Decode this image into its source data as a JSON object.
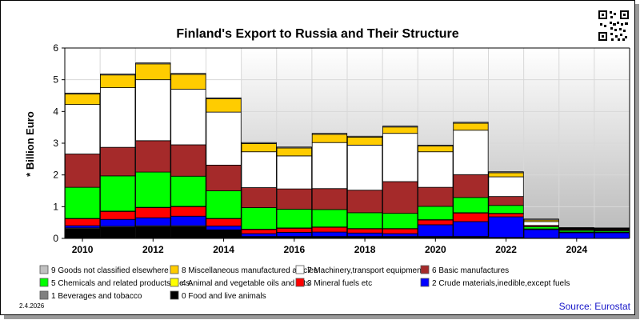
{
  "chart_data": {
    "type": "bar",
    "stacked": true,
    "title": "Finland's Export to Russia and Their Structure",
    "ylabel": "* Billion Euro",
    "xlabel": "",
    "ylim": [
      0,
      6
    ],
    "yticks": [
      "0",
      "1",
      "2",
      "3",
      "4",
      "5",
      "6"
    ],
    "xtick_labels": [
      "2010",
      "2012",
      "2014",
      "2016",
      "2018",
      "2020",
      "2022",
      "2024"
    ],
    "categories": [
      "2010",
      "2011",
      "2012",
      "2013",
      "2014",
      "2015",
      "2016",
      "2017",
      "2018",
      "2019",
      "2020",
      "2021",
      "2022",
      "2023",
      "2024",
      "2025"
    ],
    "shaded_from_year": "2015",
    "series": [
      {
        "name": "0 Food and live animals",
        "color": "#000000",
        "values": [
          0.3,
          0.35,
          0.37,
          0.37,
          0.25,
          0.05,
          0.05,
          0.05,
          0.05,
          0.05,
          0.05,
          0.05,
          0.02,
          0.01,
          0.0,
          0.0
        ]
      },
      {
        "name": "1 Beverages and tobacco",
        "color": "#808080",
        "values": [
          0.03,
          0.03,
          0.03,
          0.03,
          0.02,
          0.01,
          0.01,
          0.01,
          0.01,
          0.01,
          0.01,
          0.01,
          0.01,
          0.0,
          0.0,
          0.0
        ]
      },
      {
        "name": "2 Crude materials,inedible,except fuels",
        "color": "#0000ff",
        "values": [
          0.07,
          0.22,
          0.25,
          0.3,
          0.12,
          0.09,
          0.13,
          0.14,
          0.11,
          0.09,
          0.37,
          0.47,
          0.65,
          0.27,
          0.18,
          0.18
        ]
      },
      {
        "name": "3 Mineral fuels etc",
        "color": "#ff0000",
        "values": [
          0.22,
          0.25,
          0.32,
          0.3,
          0.23,
          0.13,
          0.13,
          0.15,
          0.13,
          0.15,
          0.15,
          0.27,
          0.1,
          0.02,
          0.02,
          0.02
        ]
      },
      {
        "name": "4 Animal and vegetable oils and fats",
        "color": "#ffff00",
        "values": [
          0.01,
          0.01,
          0.01,
          0.01,
          0.01,
          0.01,
          0.01,
          0.01,
          0.01,
          0.01,
          0.01,
          0.01,
          0.01,
          0.0,
          0.0,
          0.0
        ]
      },
      {
        "name": "5 Chemicals and related products,n.e.s.",
        "color": "#00ff00",
        "values": [
          0.98,
          1.11,
          1.11,
          0.95,
          0.87,
          0.68,
          0.59,
          0.55,
          0.5,
          0.48,
          0.42,
          0.48,
          0.25,
          0.07,
          0.05,
          0.04
        ]
      },
      {
        "name": "6 Basic manufactures",
        "color": "#a52a2a",
        "values": [
          1.05,
          0.9,
          0.99,
          0.99,
          0.81,
          0.63,
          0.64,
          0.66,
          0.71,
          1.0,
          0.6,
          0.72,
          0.28,
          0.04,
          0.03,
          0.03
        ]
      },
      {
        "name": "7 Machinery,transport equipment",
        "color": "#ffffff",
        "values": [
          1.56,
          1.88,
          1.92,
          1.75,
          1.67,
          1.13,
          1.04,
          1.45,
          1.42,
          1.52,
          1.12,
          1.4,
          0.62,
          0.12,
          0.02,
          0.02
        ]
      },
      {
        "name": "8 Miscellaneous manufactured articles",
        "color": "#ffcc00",
        "values": [
          0.33,
          0.4,
          0.5,
          0.47,
          0.42,
          0.26,
          0.25,
          0.26,
          0.25,
          0.2,
          0.18,
          0.22,
          0.13,
          0.05,
          0.02,
          0.02
        ]
      },
      {
        "name": "9 Goods not classified elsewhere",
        "color": "#c0c0c0",
        "values": [
          0.03,
          0.03,
          0.03,
          0.03,
          0.03,
          0.03,
          0.03,
          0.03,
          0.03,
          0.03,
          0.03,
          0.03,
          0.03,
          0.03,
          0.02,
          0.02
        ]
      }
    ],
    "legend_order": [
      9,
      8,
      7,
      6,
      5,
      4,
      3,
      2,
      1,
      0
    ],
    "legend_placement": "bottom"
  },
  "footer": {
    "date": "2.4.2026",
    "source": "Source: Eurostat"
  }
}
